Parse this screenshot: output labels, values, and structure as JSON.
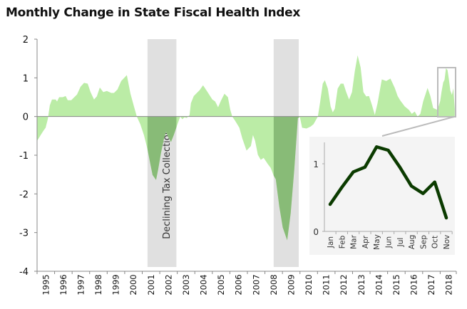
{
  "chart_data": {
    "type": "area",
    "title": "Monthly Change in State Fiscal Health Index",
    "xlabel": "",
    "ylabel": "",
    "ylim": [
      -4,
      2
    ],
    "yticks": [
      "2",
      "1",
      "0",
      "-1",
      "-2",
      "-3",
      "-4"
    ],
    "xlim": [
      1995,
      2018.92
    ],
    "xticks": [
      "1995",
      "1996",
      "1997",
      "1998",
      "1999",
      "2000",
      "2001",
      "2002",
      "2003",
      "2004",
      "2005",
      "2006",
      "2007",
      "2008",
      "2009",
      "2010",
      "2011",
      "2012",
      "2013",
      "2014",
      "2015",
      "2016",
      "2017",
      "2018"
    ],
    "grid": false,
    "colors": {
      "area": "#bbeca6",
      "area_in_band": "#88bb77",
      "band": "#e0e0e0",
      "inset_line": "#0b3b00",
      "inset_bg": "#f4f4f4"
    },
    "points": [
      [
        1995.0,
        -0.63
      ],
      [
        1995.33,
        -0.39
      ],
      [
        1995.49,
        -0.29
      ],
      [
        1995.61,
        -0.07
      ],
      [
        1995.73,
        0.29
      ],
      [
        1995.85,
        0.44
      ],
      [
        1996.06,
        0.44
      ],
      [
        1996.14,
        0.39
      ],
      [
        1996.26,
        0.5
      ],
      [
        1996.46,
        0.5
      ],
      [
        1996.63,
        0.53
      ],
      [
        1996.75,
        0.42
      ],
      [
        1996.95,
        0.42
      ],
      [
        1997.28,
        0.57
      ],
      [
        1997.48,
        0.77
      ],
      [
        1997.68,
        0.87
      ],
      [
        1997.89,
        0.85
      ],
      [
        1998.05,
        0.63
      ],
      [
        1998.25,
        0.44
      ],
      [
        1998.41,
        0.52
      ],
      [
        1998.58,
        0.75
      ],
      [
        1998.78,
        0.63
      ],
      [
        1998.98,
        0.66
      ],
      [
        1999.23,
        0.61
      ],
      [
        1999.39,
        0.61
      ],
      [
        1999.59,
        0.7
      ],
      [
        1999.8,
        0.92
      ],
      [
        2000.12,
        1.07
      ],
      [
        2000.33,
        0.59
      ],
      [
        2000.53,
        0.26
      ],
      [
        2000.69,
        0
      ],
      [
        2000.89,
        -0.2
      ],
      [
        2001.1,
        -0.48
      ],
      [
        2001.3,
        -0.85
      ],
      [
        2001.46,
        -1.22
      ],
      [
        2001.59,
        -1.51
      ],
      [
        2001.79,
        -1.64
      ],
      [
        2001.91,
        -1.36
      ],
      [
        2002.07,
        -0.94
      ],
      [
        2002.24,
        -0.57
      ],
      [
        2002.36,
        -0.39
      ],
      [
        2002.48,
        -0.53
      ],
      [
        2002.64,
        -0.66
      ],
      [
        2002.8,
        -0.48
      ],
      [
        2003.01,
        -0.2
      ],
      [
        2003.17,
        0
      ],
      [
        2003.29,
        -0.07
      ],
      [
        2003.41,
        -0.02
      ],
      [
        2003.54,
        -0.04
      ],
      [
        2003.7,
        0.04
      ],
      [
        2003.78,
        0.35
      ],
      [
        2003.94,
        0.53
      ],
      [
        2004.27,
        0.68
      ],
      [
        2004.47,
        0.81
      ],
      [
        2004.76,
        0.61
      ],
      [
        2005.0,
        0.44
      ],
      [
        2005.16,
        0.39
      ],
      [
        2005.33,
        0.24
      ],
      [
        2005.49,
        0.41
      ],
      [
        2005.69,
        0.59
      ],
      [
        2005.89,
        0.5
      ],
      [
        2006.02,
        0.18
      ],
      [
        2006.14,
        0
      ],
      [
        2006.3,
        -0.11
      ],
      [
        2006.54,
        -0.29
      ],
      [
        2006.71,
        -0.57
      ],
      [
        2006.95,
        -0.88
      ],
      [
        2007.2,
        -0.76
      ],
      [
        2007.32,
        -0.48
      ],
      [
        2007.44,
        -0.63
      ],
      [
        2007.6,
        -0.99
      ],
      [
        2007.76,
        -1.12
      ],
      [
        2007.93,
        -1.07
      ],
      [
        2008.17,
        -1.23
      ],
      [
        2008.33,
        -1.33
      ],
      [
        2008.5,
        -1.53
      ],
      [
        2008.62,
        -1.62
      ],
      [
        2008.82,
        -2.32
      ],
      [
        2009.02,
        -2.87
      ],
      [
        2009.27,
        -3.2
      ],
      [
        2009.47,
        -2.5
      ],
      [
        2009.67,
        -1.4
      ],
      [
        2009.88,
        -0.04
      ],
      [
        2010.0,
        -0.02
      ],
      [
        2010.12,
        -0.29
      ],
      [
        2010.37,
        -0.31
      ],
      [
        2010.61,
        -0.26
      ],
      [
        2010.77,
        -0.2
      ],
      [
        2011.02,
        0
      ],
      [
        2011.14,
        0.35
      ],
      [
        2011.3,
        0.85
      ],
      [
        2011.42,
        0.94
      ],
      [
        2011.59,
        0.72
      ],
      [
        2011.75,
        0.26
      ],
      [
        2011.87,
        0.11
      ],
      [
        2011.99,
        0.2
      ],
      [
        2012.15,
        0.72
      ],
      [
        2012.32,
        0.85
      ],
      [
        2012.48,
        0.85
      ],
      [
        2012.64,
        0.63
      ],
      [
        2012.8,
        0.44
      ],
      [
        2012.97,
        0.63
      ],
      [
        2013.13,
        1.18
      ],
      [
        2013.29,
        1.58
      ],
      [
        2013.46,
        1.27
      ],
      [
        2013.62,
        0.63
      ],
      [
        2013.78,
        0.52
      ],
      [
        2013.94,
        0.53
      ],
      [
        2014.11,
        0.29
      ],
      [
        2014.27,
        0.04
      ],
      [
        2014.43,
        0.35
      ],
      [
        2014.67,
        0.96
      ],
      [
        2014.92,
        0.92
      ],
      [
        2015.16,
        0.98
      ],
      [
        2015.41,
        0.74
      ],
      [
        2015.57,
        0.53
      ],
      [
        2015.73,
        0.41
      ],
      [
        2015.98,
        0.26
      ],
      [
        2016.22,
        0.17
      ],
      [
        2016.38,
        0.07
      ],
      [
        2016.55,
        0.13
      ],
      [
        2016.71,
        0
      ],
      [
        2016.87,
        0.07
      ],
      [
        2017.03,
        0.39
      ],
      [
        2017.28,
        0.74
      ],
      [
        2017.44,
        0.53
      ],
      [
        2017.6,
        0.22
      ],
      [
        2017.85,
        0.17
      ],
      [
        2018.0,
        0.4
      ],
      [
        2018.08,
        0.65
      ],
      [
        2018.17,
        0.88
      ],
      [
        2018.25,
        0.95
      ],
      [
        2018.33,
        1.25
      ],
      [
        2018.42,
        1.2
      ],
      [
        2018.5,
        0.95
      ],
      [
        2018.58,
        0.67
      ],
      [
        2018.67,
        0.56
      ],
      [
        2018.75,
        0.73
      ],
      [
        2018.83,
        0.2
      ]
    ],
    "bands": [
      {
        "start": 2001.3,
        "end": 2002.95,
        "label": "Declining Tax Collections"
      },
      {
        "start": 2008.5,
        "end": 2009.93,
        "label": ""
      }
    ],
    "inset": {
      "type": "line",
      "categories": [
        "Jan",
        "Feb",
        "Mar",
        "Apr",
        "May",
        "Jun",
        "Jul",
        "Aug",
        "Sep",
        "Oct",
        "Nov"
      ],
      "values": [
        0.4,
        0.65,
        0.88,
        0.95,
        1.25,
        1.2,
        0.95,
        0.67,
        0.56,
        0.73,
        0.2
      ],
      "yticks": [
        "0",
        "1"
      ],
      "ylim": [
        0,
        1.3
      ]
    }
  }
}
